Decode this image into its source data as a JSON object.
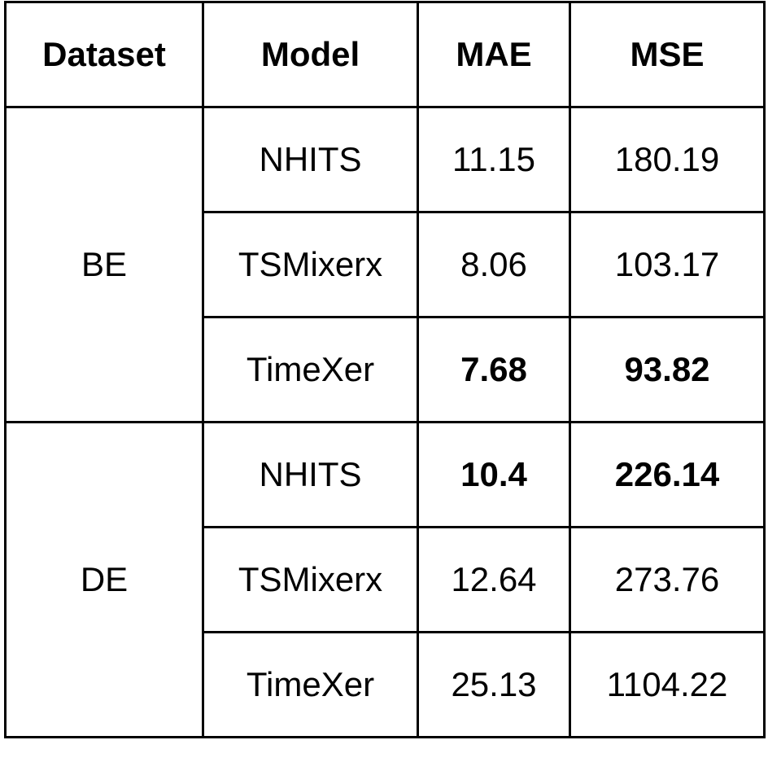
{
  "table": {
    "header": [
      "Dataset",
      "Model",
      "MAE",
      "MSE"
    ],
    "groups": [
      {
        "dataset": "BE",
        "rows": [
          [
            "NHITS",
            "11.15",
            "180.19"
          ],
          [
            "TSMixerx",
            "8.06",
            "103.17"
          ],
          [
            "TimeXer",
            "7.68",
            "93.82"
          ]
        ]
      },
      {
        "dataset": "DE",
        "rows": [
          [
            "NHITS",
            "10.4",
            "226.14"
          ],
          [
            "TSMixerx",
            "12.64",
            "273.76"
          ],
          [
            "TimeXer",
            "25.13",
            "1104.22"
          ]
        ]
      }
    ],
    "bold": [
      [
        0,
        2,
        1
      ],
      [
        0,
        2,
        2
      ],
      [
        1,
        0,
        1
      ],
      [
        1,
        0,
        2
      ]
    ]
  }
}
